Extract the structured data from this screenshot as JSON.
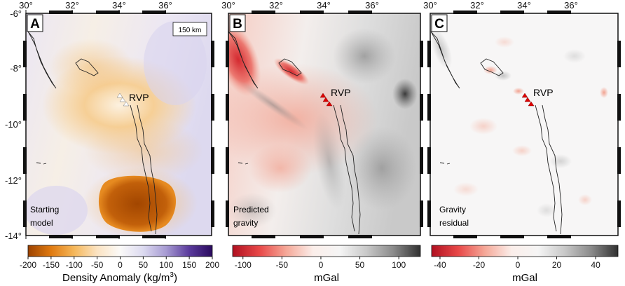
{
  "figure": {
    "panels": [
      {
        "id": "A",
        "letter": "A",
        "label_lines": [
          "Starting",
          "model"
        ],
        "show_lat_labels": true,
        "scale_bar": "150 km",
        "feature_label": "RVP",
        "triangle_color": "#ffffff"
      },
      {
        "id": "B",
        "letter": "B",
        "label_lines": [
          "Predicted",
          "gravity"
        ],
        "show_lat_labels": false,
        "feature_label": "RVP",
        "triangle_color": "#e00000"
      },
      {
        "id": "C",
        "letter": "C",
        "label_lines": [
          "Gravity",
          "residual"
        ],
        "show_lat_labels": false,
        "feature_label": "RVP",
        "triangle_color": "#e00000"
      }
    ],
    "lon_ticks": [
      "30°",
      "32°",
      "34°",
      "36°"
    ],
    "lat_ticks": [
      "-6°",
      "-8°",
      "-10°",
      "-12°",
      "-14°"
    ],
    "colorbars": [
      {
        "id": "density",
        "label": "Density Anomaly (kg/m",
        "label_sup": "3",
        "label_tail": ")",
        "ticks": [
          "-200",
          "-150",
          "-100",
          "-50",
          "0",
          "50",
          "100",
          "150",
          "200"
        ],
        "colors": [
          "#9c4200",
          "#e07a10",
          "#f5b75a",
          "#fbe3c2",
          "#fbfaf8",
          "#dcdaf0",
          "#a69ad2",
          "#5a3a9c",
          "#2a0a5e"
        ]
      },
      {
        "id": "predicted",
        "label": "mGal",
        "ticks": [
          "-100",
          "-50",
          "0",
          "50",
          "100"
        ],
        "colors": [
          "#b01020",
          "#e84848",
          "#f5a898",
          "#fbeeea",
          "#f5f5f5",
          "#c8c8c8",
          "#8a8a8a",
          "#303030"
        ]
      },
      {
        "id": "residual",
        "label": "mGal",
        "ticks": [
          "-40",
          "-20",
          "0",
          "20",
          "40"
        ],
        "colors": [
          "#b01020",
          "#e84848",
          "#f5a898",
          "#fbeeea",
          "#f5f5f5",
          "#c8c8c8",
          "#8a8a8a",
          "#303030"
        ]
      }
    ]
  }
}
